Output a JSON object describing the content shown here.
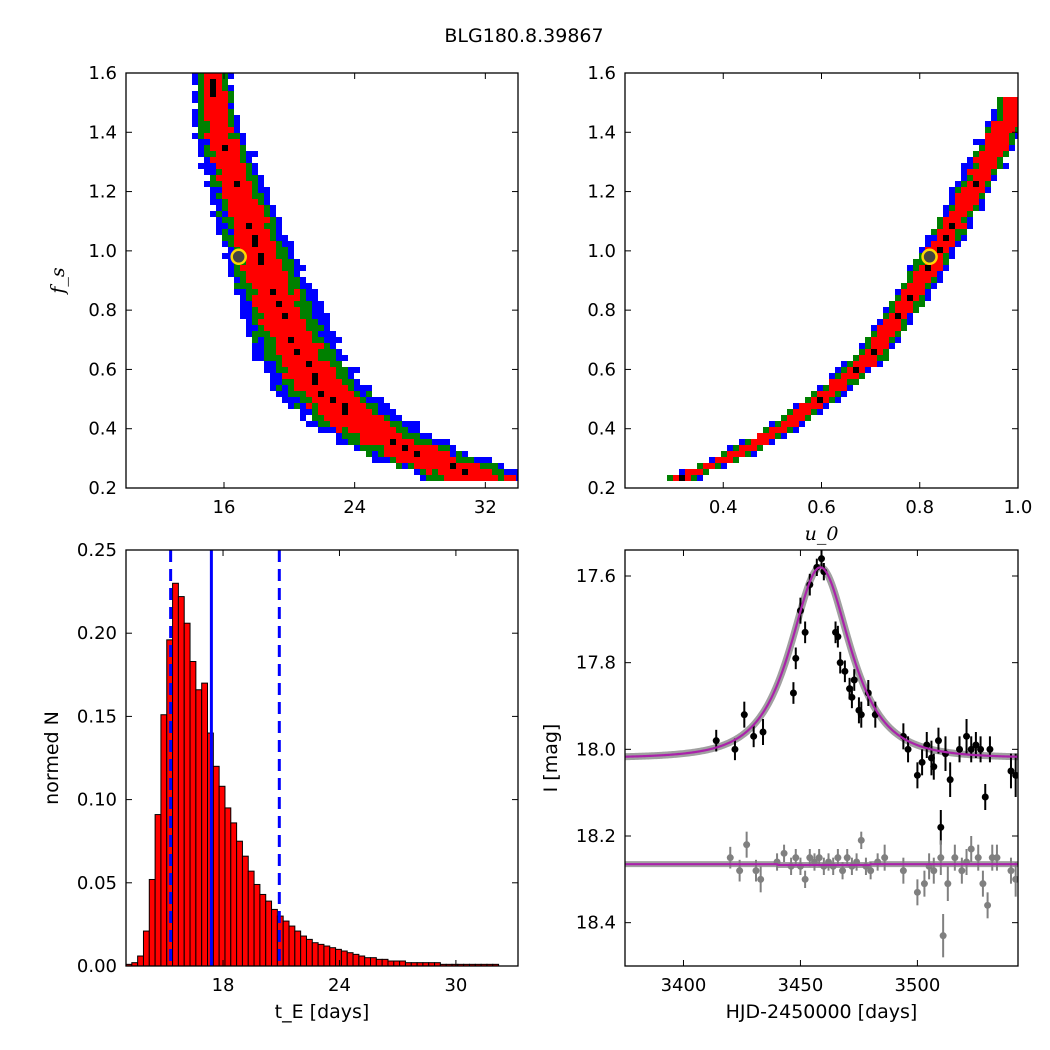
{
  "figure_title": "BLG180.8.39867",
  "chart_data": [
    {
      "type": "heatmap",
      "panel": "top-left",
      "xlabel": "",
      "ylabel": "f_s",
      "xlim": [
        10,
        34
      ],
      "ylim": [
        0.2,
        1.6
      ],
      "xticks": [
        16,
        24,
        32
      ],
      "yticks": [
        0.2,
        0.4,
        0.6,
        0.8,
        1.0,
        1.2,
        1.4,
        1.6
      ],
      "confidence_colors": [
        "#000000",
        "#ff0000",
        "#008000",
        "#0000ff"
      ],
      "ridge": [
        [
          15.3,
          1.57
        ],
        [
          15.5,
          1.45
        ],
        [
          16.2,
          1.32
        ],
        [
          17.0,
          1.18
        ],
        [
          18.0,
          1.02
        ],
        [
          18.9,
          0.88
        ],
        [
          19.7,
          0.76
        ],
        [
          20.7,
          0.64
        ],
        [
          22.0,
          0.53
        ],
        [
          23.8,
          0.44
        ],
        [
          25.8,
          0.37
        ],
        [
          28.0,
          0.31
        ],
        [
          30.3,
          0.26
        ],
        [
          31.5,
          0.24
        ]
      ],
      "best_fit": {
        "x": 16.9,
        "y": 0.98
      }
    },
    {
      "type": "heatmap",
      "panel": "top-right",
      "xlabel": "u_0",
      "ylabel": "",
      "xlim": [
        0.2,
        1.0
      ],
      "ylim": [
        0.2,
        1.6
      ],
      "xticks": [
        0.4,
        0.6,
        0.8,
        1.0
      ],
      "yticks": [
        0.2,
        0.4,
        0.6,
        0.8,
        1.0,
        1.2,
        1.4,
        1.6
      ],
      "confidence_colors": [
        "#000000",
        "#ff0000",
        "#008000",
        "#0000ff"
      ],
      "ridge": [
        [
          0.32,
          0.24
        ],
        [
          0.4,
          0.29
        ],
        [
          0.5,
          0.38
        ],
        [
          0.6,
          0.5
        ],
        [
          0.7,
          0.64
        ],
        [
          0.8,
          0.89
        ],
        [
          0.86,
          1.06
        ],
        [
          0.92,
          1.25
        ],
        [
          0.97,
          1.4
        ],
        [
          1.0,
          1.5
        ]
      ],
      "best_fit": {
        "x": 0.82,
        "y": 0.98
      }
    },
    {
      "type": "bar",
      "panel": "bottom-left",
      "xlabel": "t_E [days]",
      "ylabel": "normed N",
      "xlim": [
        13,
        33.2
      ],
      "ylim": [
        0,
        0.25
      ],
      "xticks": [
        18,
        24,
        30
      ],
      "yticks": [
        0.0,
        0.05,
        0.1,
        0.15,
        0.2,
        0.25
      ],
      "bar_color": "#ff0000",
      "bin_width": 0.3,
      "x": [
        13.15,
        13.45,
        13.75,
        14.05,
        14.35,
        14.65,
        14.95,
        15.25,
        15.55,
        15.85,
        16.15,
        16.45,
        16.75,
        17.05,
        17.35,
        17.65,
        17.95,
        18.25,
        18.55,
        18.85,
        19.15,
        19.45,
        19.75,
        20.05,
        20.35,
        20.65,
        20.95,
        21.25,
        21.55,
        21.85,
        22.15,
        22.45,
        22.75,
        23.05,
        23.35,
        23.65,
        23.95,
        24.25,
        24.55,
        24.85,
        25.15,
        25.45,
        25.75,
        26.05,
        26.35,
        26.65,
        26.95,
        27.25,
        27.55,
        27.85,
        28.15,
        28.45,
        28.75,
        29.05,
        29.35,
        29.65,
        29.95,
        30.25,
        30.55,
        30.85,
        31.15,
        31.45,
        31.75,
        32.05
      ],
      "values": [
        0.001,
        0.002,
        0.006,
        0.021,
        0.052,
        0.091,
        0.151,
        0.196,
        0.23,
        0.222,
        0.206,
        0.183,
        0.166,
        0.17,
        0.14,
        0.12,
        0.108,
        0.095,
        0.086,
        0.075,
        0.066,
        0.057,
        0.049,
        0.043,
        0.039,
        0.034,
        0.03,
        0.027,
        0.024,
        0.021,
        0.018,
        0.016,
        0.014,
        0.013,
        0.012,
        0.011,
        0.01,
        0.009,
        0.008,
        0.007,
        0.006,
        0.005,
        0.005,
        0.004,
        0.004,
        0.003,
        0.003,
        0.003,
        0.002,
        0.002,
        0.002,
        0.002,
        0.002,
        0.002,
        0.001,
        0.001,
        0.001,
        0.001,
        0.001,
        0.001,
        0.001,
        0.001,
        0.001,
        0.001
      ],
      "median_line": 17.4,
      "interval_lines": [
        15.3,
        20.9
      ]
    },
    {
      "type": "scatter",
      "panel": "bottom-right",
      "xlabel": "HJD-2450000 [days]",
      "ylabel": "I [mag]",
      "xlim": [
        3375,
        3543
      ],
      "ylim": [
        18.5,
        17.54
      ],
      "y_inverted": true,
      "xticks": [
        3400,
        3450,
        3500
      ],
      "yticks": [
        17.6,
        17.8,
        18.0,
        18.2,
        18.4
      ],
      "model_color": "#aa22aa",
      "band_color": "#888888",
      "model": {
        "t0": 3458.5,
        "u0": 0.82,
        "tE": 17.0,
        "baseline": 18.02
      },
      "series": [
        {
          "points_color": "#000000",
          "points": [
            [
              3414,
              17.98,
              0.025
            ],
            [
              3422,
              18.0,
              0.025
            ],
            [
              3426,
              17.92,
              0.03
            ],
            [
              3430,
              17.97,
              0.025
            ],
            [
              3434,
              17.96,
              0.03
            ],
            [
              3447,
              17.87,
              0.025
            ],
            [
              3448,
              17.79,
              0.025
            ],
            [
              3450,
              17.68,
              0.03
            ],
            [
              3452,
              17.73,
              0.025
            ],
            [
              3454,
              17.62,
              0.025
            ],
            [
              3457,
              17.58,
              0.02
            ],
            [
              3459,
              17.56,
              0.02
            ],
            [
              3460,
              17.59,
              0.02
            ],
            [
              3465,
              17.73,
              0.025
            ],
            [
              3466,
              17.74,
              0.025
            ],
            [
              3467,
              17.8,
              0.025
            ],
            [
              3469,
              17.82,
              0.025
            ],
            [
              3471,
              17.86,
              0.025
            ],
            [
              3472,
              17.88,
              0.025
            ],
            [
              3473,
              17.84,
              0.025
            ],
            [
              3475,
              17.91,
              0.03
            ],
            [
              3476,
              17.92,
              0.03
            ],
            [
              3479,
              17.87,
              0.03
            ],
            [
              3482,
              17.92,
              0.03
            ],
            [
              3494,
              17.97,
              0.03
            ],
            [
              3496,
              18.0,
              0.03
            ],
            [
              3500,
              18.06,
              0.03
            ],
            [
              3502,
              18.03,
              0.03
            ],
            [
              3504,
              17.99,
              0.03
            ],
            [
              3506,
              18.02,
              0.04
            ],
            [
              3507,
              18.04,
              0.03
            ],
            [
              3509,
              17.98,
              0.03
            ],
            [
              3510,
              18.18,
              0.04
            ],
            [
              3512,
              18.01,
              0.04
            ],
            [
              3514,
              18.07,
              0.04
            ],
            [
              3518,
              18.0,
              0.03
            ],
            [
              3521,
              17.97,
              0.04
            ],
            [
              3523,
              18.0,
              0.03
            ],
            [
              3525,
              17.99,
              0.03
            ],
            [
              3527,
              18.0,
              0.03
            ],
            [
              3529,
              18.11,
              0.03
            ],
            [
              3531,
              18.0,
              0.03
            ],
            [
              3540,
              18.05,
              0.04
            ],
            [
              3542,
              18.06,
              0.05
            ]
          ]
        },
        {
          "points_color": "#808080",
          "points": [
            [
              3420,
              18.25,
              0.025
            ],
            [
              3424,
              18.28,
              0.025
            ],
            [
              3427,
              18.22,
              0.03
            ],
            [
              3431,
              18.28,
              0.025
            ],
            [
              3433,
              18.3,
              0.03
            ],
            [
              3440,
              18.26,
              0.02
            ],
            [
              3443,
              18.24,
              0.02
            ],
            [
              3446,
              18.27,
              0.02
            ],
            [
              3448,
              18.25,
              0.02
            ],
            [
              3450,
              18.27,
              0.02
            ],
            [
              3452,
              18.3,
              0.02
            ],
            [
              3454,
              18.25,
              0.02
            ],
            [
              3456,
              18.26,
              0.02
            ],
            [
              3458,
              18.25,
              0.02
            ],
            [
              3460,
              18.27,
              0.02
            ],
            [
              3462,
              18.26,
              0.02
            ],
            [
              3464,
              18.27,
              0.02
            ],
            [
              3466,
              18.25,
              0.02
            ],
            [
              3468,
              18.28,
              0.02
            ],
            [
              3470,
              18.25,
              0.02
            ],
            [
              3472,
              18.27,
              0.02
            ],
            [
              3474,
              18.26,
              0.02
            ],
            [
              3476,
              18.21,
              0.02
            ],
            [
              3478,
              18.27,
              0.02
            ],
            [
              3480,
              18.28,
              0.02
            ],
            [
              3483,
              18.26,
              0.02
            ],
            [
              3486,
              18.25,
              0.03
            ],
            [
              3494,
              18.28,
              0.03
            ],
            [
              3500,
              18.33,
              0.03
            ],
            [
              3503,
              18.31,
              0.03
            ],
            [
              3505,
              18.27,
              0.03
            ],
            [
              3507,
              18.28,
              0.03
            ],
            [
              3510,
              18.25,
              0.04
            ],
            [
              3511,
              18.43,
              0.05
            ],
            [
              3513,
              18.31,
              0.04
            ],
            [
              3516,
              18.25,
              0.03
            ],
            [
              3519,
              18.28,
              0.03
            ],
            [
              3521,
              18.26,
              0.03
            ],
            [
              3523,
              18.23,
              0.03
            ],
            [
              3526,
              18.25,
              0.03
            ],
            [
              3528,
              18.31,
              0.03
            ],
            [
              3530,
              18.36,
              0.03
            ],
            [
              3532,
              18.25,
              0.03
            ],
            [
              3534,
              18.25,
              0.03
            ],
            [
              3540,
              18.28,
              0.03
            ],
            [
              3542,
              18.3,
              0.04
            ]
          ]
        }
      ]
    }
  ]
}
